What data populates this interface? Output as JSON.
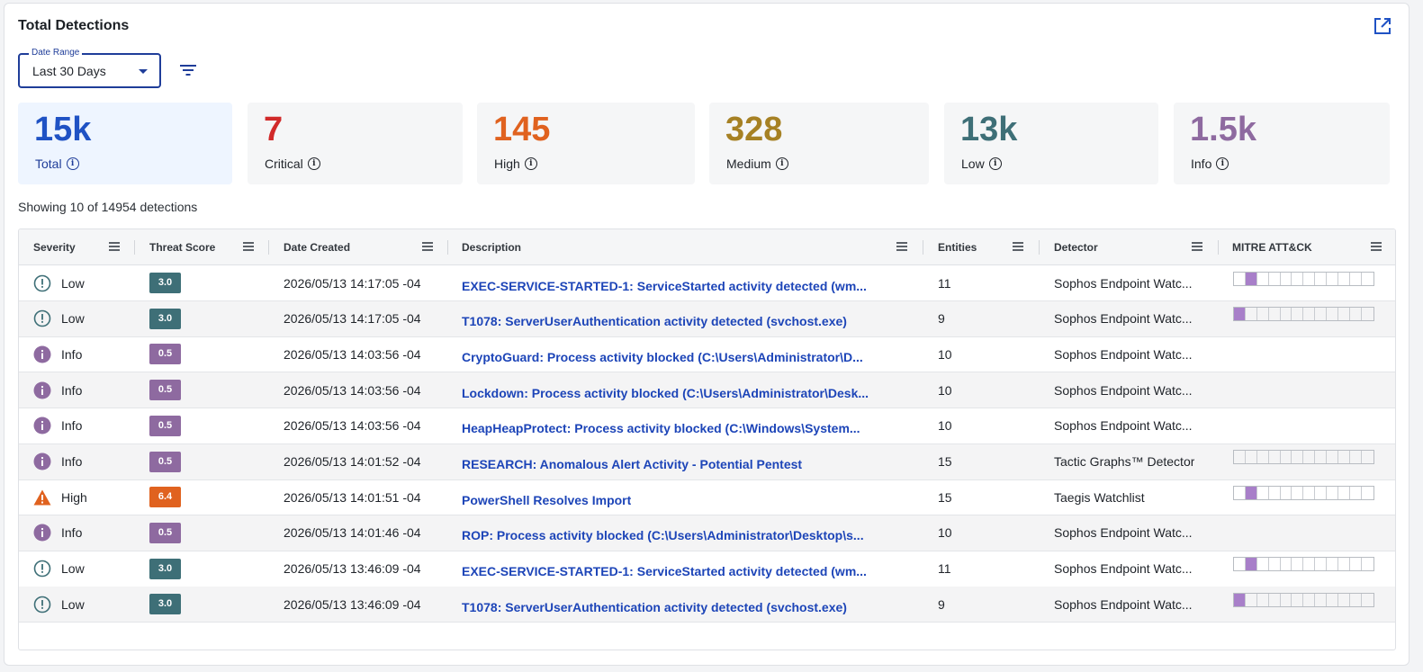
{
  "title": "Total Detections",
  "date_range": {
    "label": "Date Range",
    "value": "Last 30 Days"
  },
  "cards": [
    {
      "value": "15k",
      "label": "Total",
      "color": "#1f52c4"
    },
    {
      "value": "7",
      "label": "Critical",
      "color": "#d12a2a"
    },
    {
      "value": "145",
      "label": "High",
      "color": "#e0621f"
    },
    {
      "value": "328",
      "label": "Medium",
      "color": "#a68124"
    },
    {
      "value": "13k",
      "label": "Low",
      "color": "#3e6f77"
    },
    {
      "value": "1.5k",
      "label": "Info",
      "color": "#8e6aa0"
    }
  ],
  "showing": "Showing 10 of 14954 detections",
  "columns": [
    "Severity",
    "Threat Score",
    "Date Created",
    "Description",
    "Entities",
    "Detector",
    "MITRE ATT&CK"
  ],
  "severity_colors": {
    "Low": "#3e6f77",
    "Info": "#8e6aa0",
    "High": "#e0621f"
  },
  "rows": [
    {
      "severity": "Low",
      "score": "3.0",
      "date": "2026/05/13 14:17:05 -04",
      "description": "EXEC-SERVICE-STARTED-1: ServiceStarted activity detected (wm...",
      "entities": "11",
      "detector": "Sophos Endpoint Watc...",
      "mitre": [
        0,
        1,
        0,
        0,
        0,
        0,
        0,
        0,
        0,
        0,
        0,
        0
      ]
    },
    {
      "severity": "Low",
      "score": "3.0",
      "date": "2026/05/13 14:17:05 -04",
      "description": "T1078: ServerUserAuthentication activity detected (svchost.exe)",
      "entities": "9",
      "detector": "Sophos Endpoint Watc...",
      "mitre": [
        1,
        0,
        0,
        0,
        0,
        0,
        0,
        0,
        0,
        0,
        0,
        0
      ]
    },
    {
      "severity": "Info",
      "score": "0.5",
      "date": "2026/05/13 14:03:56 -04",
      "description": "CryptoGuard: Process activity blocked (C:\\Users\\Administrator\\D...",
      "entities": "10",
      "detector": "Sophos Endpoint Watc...",
      "mitre": null
    },
    {
      "severity": "Info",
      "score": "0.5",
      "date": "2026/05/13 14:03:56 -04",
      "description": "Lockdown: Process activity blocked (C:\\Users\\Administrator\\Desk...",
      "entities": "10",
      "detector": "Sophos Endpoint Watc...",
      "mitre": null
    },
    {
      "severity": "Info",
      "score": "0.5",
      "date": "2026/05/13 14:03:56 -04",
      "description": "HeapHeapProtect: Process activity blocked (C:\\Windows\\System...",
      "entities": "10",
      "detector": "Sophos Endpoint Watc...",
      "mitre": null
    },
    {
      "severity": "Info",
      "score": "0.5",
      "date": "2026/05/13 14:01:52 -04",
      "description": "RESEARCH: Anomalous Alert Activity - Potential Pentest",
      "entities": "15",
      "detector": "Tactic Graphs™ Detector",
      "mitre": [
        0,
        0,
        0,
        0,
        0,
        0,
        0,
        0,
        0,
        0,
        0,
        0
      ]
    },
    {
      "severity": "High",
      "score": "6.4",
      "date": "2026/05/13 14:01:51 -04",
      "description": "PowerShell Resolves Import",
      "entities": "15",
      "detector": "Taegis Watchlist",
      "mitre": [
        0,
        1,
        0,
        0,
        0,
        0,
        0,
        0,
        0,
        0,
        0,
        0
      ]
    },
    {
      "severity": "Info",
      "score": "0.5",
      "date": "2026/05/13 14:01:46 -04",
      "description": "ROP: Process activity blocked (C:\\Users\\Administrator\\Desktop\\s...",
      "entities": "10",
      "detector": "Sophos Endpoint Watc...",
      "mitre": null
    },
    {
      "severity": "Low",
      "score": "3.0",
      "date": "2026/05/13 13:46:09 -04",
      "description": "EXEC-SERVICE-STARTED-1: ServiceStarted activity detected (wm...",
      "entities": "11",
      "detector": "Sophos Endpoint Watc...",
      "mitre": [
        0,
        1,
        0,
        0,
        0,
        0,
        0,
        0,
        0,
        0,
        0,
        0
      ]
    },
    {
      "severity": "Low",
      "score": "3.0",
      "date": "2026/05/13 13:46:09 -04",
      "description": "T1078: ServerUserAuthentication activity detected (svchost.exe)",
      "entities": "9",
      "detector": "Sophos Endpoint Watc...",
      "mitre": [
        1,
        0,
        0,
        0,
        0,
        0,
        0,
        0,
        0,
        0,
        0,
        0
      ]
    }
  ]
}
